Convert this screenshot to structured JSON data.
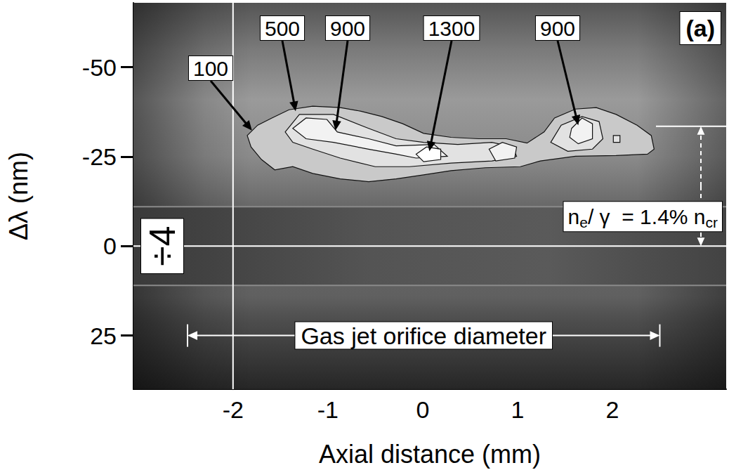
{
  "chart_data": {
    "type": "contour",
    "title": "(a)",
    "x_label": "Axial distance (mm)",
    "y_label": "Δλ (nm)",
    "xlim": [
      -3.05,
      3.2
    ],
    "ylim": [
      40,
      -68
    ],
    "xticks": [
      -2,
      -1,
      0,
      1,
      2
    ],
    "yticks": [
      -50,
      -25,
      0,
      25
    ],
    "grid": false,
    "contours": [
      {
        "level": 100,
        "x": [
          -1.85,
          -1.74,
          -1.59,
          -1.41,
          -1.16,
          -0.87,
          -0.65,
          -0.43,
          -0.21,
          0.01,
          0.3,
          0.59,
          0.88,
          1.1,
          1.28,
          1.39,
          1.61,
          1.83,
          2.04,
          2.26,
          2.41,
          2.44,
          2.37,
          2.04,
          1.61,
          1.24,
          1.03,
          0.66,
          0.3,
          0.01,
          -0.28,
          -0.57,
          -0.87,
          -1.16,
          -1.37,
          -1.56,
          -1.7,
          -1.81
        ],
        "y": [
          -30.9,
          -33.8,
          -35.8,
          -38.1,
          -39.1,
          -38.7,
          -37.7,
          -36.2,
          -34.2,
          -31.5,
          -30.4,
          -30.0,
          -30.0,
          -28.8,
          -31.9,
          -35.8,
          -38.3,
          -38.7,
          -36.8,
          -33.8,
          -30.9,
          -27.1,
          -25.7,
          -25.3,
          -25.1,
          -23.8,
          -22.2,
          -21.9,
          -21.1,
          -19.9,
          -18.8,
          -18.0,
          -18.8,
          -20.3,
          -22.2,
          -21.3,
          -24.2,
          -27.7
        ]
      },
      {
        "level": 500,
        "x": [
          -1.45,
          -1.3,
          -0.94,
          -0.57,
          -0.28,
          0.01,
          0.37,
          0.73,
          0.95,
          0.99,
          0.73,
          0.3,
          -0.14,
          -0.5,
          -0.87,
          -1.16,
          -1.37
        ],
        "y": [
          -31.9,
          -36.8,
          -36.8,
          -32.9,
          -30.0,
          -29.0,
          -28.4,
          -29.0,
          -27.7,
          -25.1,
          -23.8,
          -23.2,
          -22.2,
          -22.2,
          -24.6,
          -27.1,
          -29.0
        ]
      },
      {
        "level": 500,
        "x": [
          1.35,
          1.46,
          1.68,
          1.86,
          1.9,
          1.79,
          1.53
        ],
        "y": [
          -29.0,
          -33.8,
          -36.2,
          -34.8,
          -30.0,
          -27.1,
          -26.5
        ]
      },
      {
        "level": 500,
        "x": [
          2.01,
          2.08,
          2.08,
          2.01
        ],
        "y": [
          -30.9,
          -30.9,
          -29.0,
          -29.0
        ]
      },
      {
        "level": 900,
        "x": [
          -1.37,
          -1.23,
          -1.01,
          -0.9,
          -0.57,
          -0.28,
          0.12,
          0.26,
          -0.07,
          -0.28,
          -0.57,
          -0.94,
          -1.23
        ],
        "y": [
          -32.9,
          -35.8,
          -35.4,
          -31.9,
          -30.0,
          -28.0,
          -28.4,
          -25.1,
          -24.6,
          -25.7,
          -27.1,
          -29.0,
          -30.0
        ]
      },
      {
        "level": 900,
        "x": [
          0.7,
          0.84,
          0.99,
          0.97,
          0.77
        ],
        "y": [
          -27.1,
          -29.0,
          -27.7,
          -24.6,
          -23.8
        ]
      },
      {
        "level": 900,
        "x": [
          1.57,
          1.68,
          1.79,
          1.79,
          1.64,
          1.55
        ],
        "y": [
          -32.9,
          -35.8,
          -34.2,
          -30.0,
          -28.6,
          -30.4
        ]
      },
      {
        "level": 1300,
        "x": [
          -0.07,
          0.04,
          0.19,
          0.19,
          0.01
        ],
        "y": [
          -25.7,
          -27.7,
          -27.1,
          -24.2,
          -23.6
        ]
      }
    ],
    "annotations": [
      {
        "text": "100",
        "point": [
          -1.8,
          -32.3
        ]
      },
      {
        "text": "500",
        "point": [
          -1.34,
          -37.7
        ]
      },
      {
        "text": "900",
        "point": [
          -0.92,
          -32.3
        ]
      },
      {
        "text": "1300",
        "point": [
          0.07,
          -26.5
        ]
      },
      {
        "text": "900",
        "point": [
          1.64,
          -33.8
        ]
      }
    ],
    "reference_lines": {
      "x": -2,
      "y": 0
    },
    "band": {
      "text": "÷4",
      "range": [
        -11,
        11
      ]
    },
    "shift": {
      "from": 0,
      "to": -33.5,
      "segments": [
        {
          "text": "n"
        },
        {
          "text": "e",
          "sub": true
        },
        {
          "text": "/ γ  = 1.4% n"
        },
        {
          "text": "cr",
          "sub": true
        }
      ]
    },
    "span": {
      "text": "Gas jet orifice diameter",
      "x": [
        -2.48,
        2.5
      ],
      "y": 25
    }
  }
}
